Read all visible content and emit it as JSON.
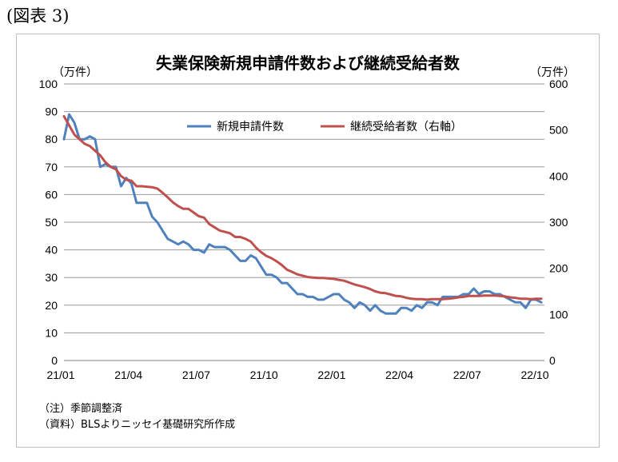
{
  "figure_label": "(図表 3)",
  "title": "失業保険新規申請件数および継続受給者数",
  "left_unit": "（万件）",
  "right_unit": "（万件）",
  "notes": [
    "（注）季節調整済",
    "（資料）BLSよりニッセイ基礎研究所作成"
  ],
  "colors": {
    "series1": "#4f81bd",
    "series2": "#c0504d"
  },
  "chart_data": {
    "type": "line",
    "x_tick_labels": [
      "21/01",
      "21/04",
      "21/07",
      "21/10",
      "22/01",
      "22/04",
      "22/07",
      "22/10"
    ],
    "ylim_left": [
      0,
      100
    ],
    "yticks_left": [
      "0",
      "10",
      "20",
      "30",
      "40",
      "50",
      "60",
      "70",
      "80",
      "90",
      "100"
    ],
    "ylim_right": [
      0,
      600
    ],
    "yticks_right": [
      "0",
      "100",
      "200",
      "300",
      "400",
      "500",
      "600"
    ],
    "legend_position": "top",
    "grid": true,
    "series": [
      {
        "name": "新規申請件数",
        "axis": "left",
        "values": [
          80,
          89,
          86,
          80,
          80,
          81,
          80,
          70,
          71,
          70,
          70,
          63,
          66,
          64,
          57,
          57,
          57,
          52,
          50,
          47,
          44,
          43,
          42,
          43,
          42,
          40,
          40,
          39,
          42,
          41,
          41,
          41,
          40,
          38,
          36,
          36,
          38,
          37,
          34,
          31,
          31,
          30,
          28,
          28,
          26,
          24,
          24,
          23,
          23,
          22,
          22,
          23,
          24,
          24,
          22,
          21,
          19,
          21,
          20,
          18,
          20,
          18,
          17,
          17,
          17,
          19,
          19,
          18,
          20,
          19,
          21,
          21,
          20,
          23,
          23,
          23,
          23,
          24,
          24,
          26,
          24,
          25,
          25,
          24,
          24,
          23,
          22,
          21,
          21,
          19,
          22,
          22,
          21
        ]
      },
      {
        "name": "継続受給者数（右軸）",
        "axis": "right",
        "values": [
          530,
          510,
          490,
          480,
          470,
          465,
          455,
          445,
          430,
          420,
          415,
          400,
          392,
          390,
          378,
          378,
          377,
          376,
          373,
          364,
          354,
          343,
          335,
          329,
          329,
          321,
          313,
          310,
          296,
          289,
          282,
          279,
          276,
          268,
          268,
          264,
          258,
          245,
          235,
          227,
          222,
          215,
          207,
          197,
          192,
          187,
          184,
          181,
          180,
          179,
          179,
          178,
          177,
          175,
          173,
          169,
          165,
          162,
          159,
          155,
          150,
          147,
          146,
          143,
          140,
          139,
          136,
          134,
          133,
          133,
          132,
          133,
          133,
          133,
          134,
          135,
          137,
          138,
          140,
          140,
          140,
          141,
          141,
          141,
          140,
          139,
          137,
          136,
          134,
          134,
          133,
          134,
          134
        ]
      }
    ]
  }
}
